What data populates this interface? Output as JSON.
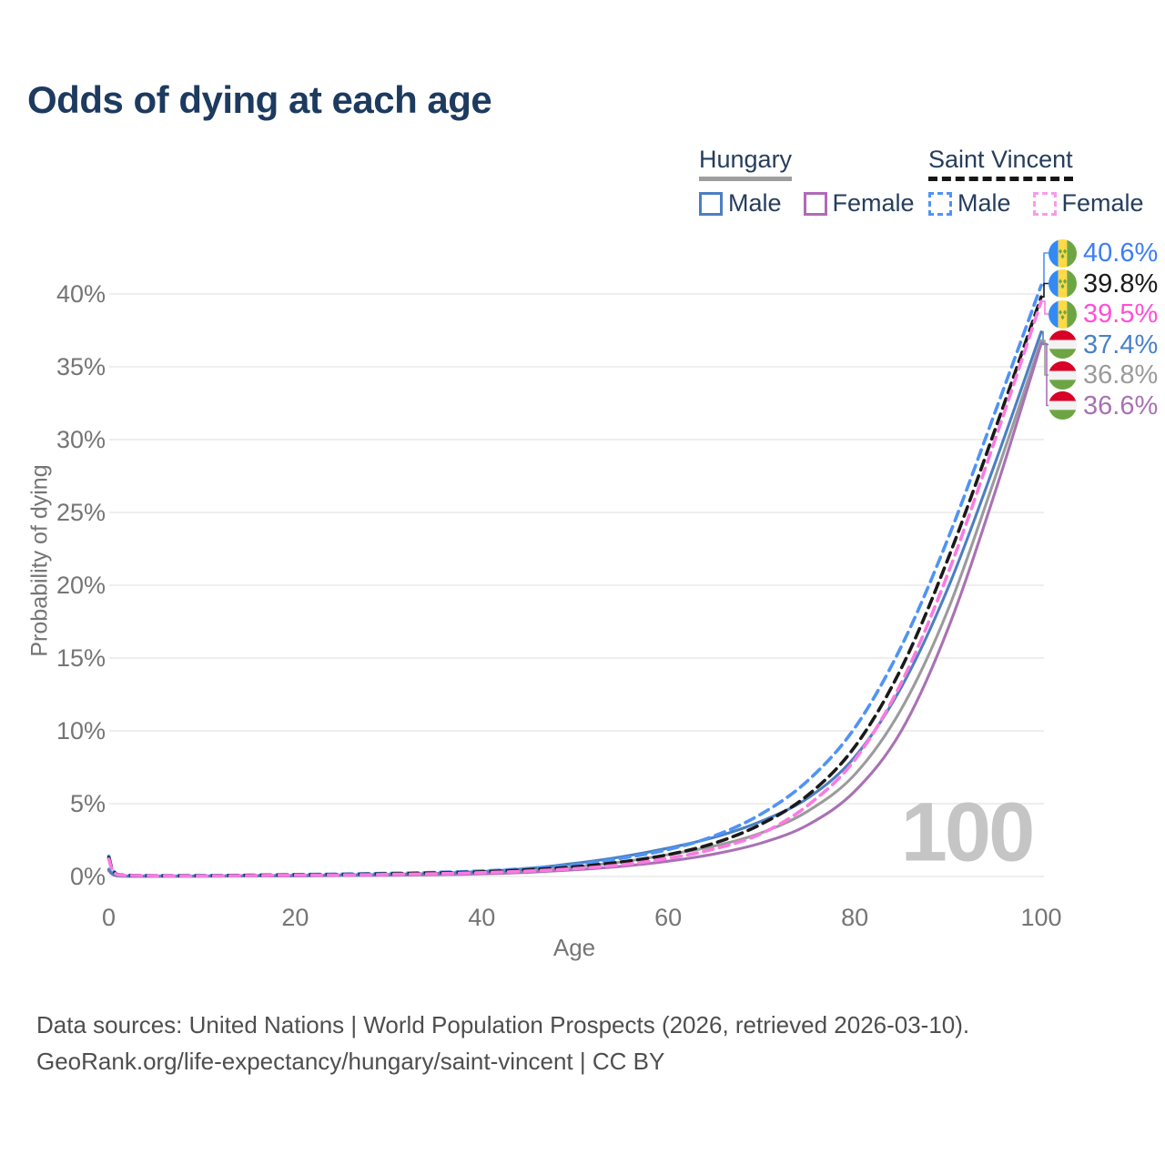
{
  "title": "Odds of dying at each age",
  "legend": {
    "groups": [
      {
        "name": "Hungary",
        "underline_style": "solid",
        "underline_color": "#9e9e9e",
        "items": [
          {
            "label": "Male",
            "color": "#4c7fc1",
            "dash": false
          },
          {
            "label": "Female",
            "color": "#b06ab8",
            "dash": false
          }
        ]
      },
      {
        "name": "Saint Vincent",
        "underline_style": "dashed",
        "underline_color": "#161616",
        "items": [
          {
            "label": "Male",
            "color": "#4f93f6",
            "dash": true
          },
          {
            "label": "Female",
            "color": "#fb9ae8",
            "dash": true
          }
        ]
      }
    ]
  },
  "y_axis": {
    "title": "Probability of dying",
    "tick_labels": [
      "0%",
      "5%",
      "10%",
      "15%",
      "20%",
      "25%",
      "30%",
      "35%",
      "40%"
    ],
    "tick_values": [
      0,
      5,
      10,
      15,
      20,
      25,
      30,
      35,
      40
    ]
  },
  "x_axis": {
    "title": "Age",
    "tick_labels": [
      "0",
      "20",
      "40",
      "60",
      "80",
      "100"
    ],
    "tick_values": [
      0,
      20,
      40,
      60,
      80,
      100
    ]
  },
  "watermark": "100",
  "end_labels": [
    {
      "flag": "saint-vincent",
      "value": "40.6%",
      "color": "#3d7ef5"
    },
    {
      "flag": "saint-vincent",
      "value": "39.8%",
      "color": "#1a1a1a"
    },
    {
      "flag": "saint-vincent",
      "value": "39.5%",
      "color": "#ff4fd8"
    },
    {
      "flag": "hungary",
      "value": "37.4%",
      "color": "#4a80c9"
    },
    {
      "flag": "hungary",
      "value": "36.8%",
      "color": "#9b9b9b"
    },
    {
      "flag": "hungary",
      "value": "36.6%",
      "color": "#a971b4"
    }
  ],
  "footer": {
    "line1": "Data sources: United Nations | World Population Prospects (2026, retrieved 2026-03-10).",
    "line2": "GeoRank.org/life-expectancy/hungary/saint-vincent | CC BY"
  },
  "flag_colors": {
    "saint_vincent": {
      "blue": "#338af3",
      "yellow": "#ffda44",
      "green": "#6da544"
    },
    "hungary": {
      "red": "#d80027",
      "white": "#f2f2f2",
      "green": "#6da544"
    }
  },
  "chart_data": {
    "type": "line",
    "title": "Odds of dying at each age",
    "xlabel": "Age",
    "ylabel": "Probability of dying",
    "x_range": [
      0,
      100
    ],
    "y_range_percent": [
      0,
      42
    ],
    "grid": true,
    "legend_position": "top-right",
    "x": [
      0,
      1,
      5,
      10,
      15,
      20,
      25,
      30,
      35,
      40,
      45,
      50,
      55,
      60,
      65,
      70,
      75,
      80,
      85,
      90,
      95,
      100
    ],
    "series": [
      {
        "name": "Saint Vincent Male",
        "style": "dashed",
        "color": "#4f93f6",
        "values": [
          1.4,
          0.12,
          0.06,
          0.06,
          0.09,
          0.13,
          0.17,
          0.22,
          0.28,
          0.38,
          0.55,
          0.8,
          1.25,
          1.85,
          2.8,
          4.3,
          6.6,
          10.2,
          15.8,
          23.2,
          31.8,
          40.6
        ]
      },
      {
        "name": "Saint Vincent Both sexes",
        "style": "dashed",
        "color": "#1a1a1a",
        "values": [
          1.3,
          0.11,
          0.05,
          0.05,
          0.08,
          0.11,
          0.14,
          0.18,
          0.24,
          0.32,
          0.46,
          0.66,
          1.0,
          1.5,
          2.3,
          3.6,
          5.6,
          8.9,
          14.3,
          21.8,
          30.6,
          39.8
        ]
      },
      {
        "name": "Saint Vincent Female",
        "style": "dashed",
        "color": "#fb7ae1",
        "values": [
          1.2,
          0.1,
          0.05,
          0.04,
          0.06,
          0.09,
          0.11,
          0.14,
          0.19,
          0.26,
          0.37,
          0.54,
          0.8,
          1.25,
          1.9,
          2.95,
          4.9,
          8.0,
          13.3,
          20.8,
          29.9,
          39.5
        ]
      },
      {
        "name": "Hungary Male",
        "style": "solid",
        "color": "#4c7fc1",
        "values": [
          0.5,
          0.04,
          0.02,
          0.03,
          0.05,
          0.07,
          0.1,
          0.14,
          0.21,
          0.34,
          0.55,
          0.9,
          1.35,
          1.95,
          2.7,
          3.8,
          5.4,
          8.2,
          13.0,
          19.8,
          28.3,
          37.4
        ]
      },
      {
        "name": "Hungary Both sexes",
        "style": "solid",
        "color": "#9b9b9b",
        "values": [
          0.45,
          0.04,
          0.02,
          0.02,
          0.04,
          0.05,
          0.08,
          0.11,
          0.16,
          0.26,
          0.42,
          0.67,
          1.0,
          1.5,
          2.1,
          3.0,
          4.5,
          7.0,
          11.5,
          18.3,
          27.3,
          36.8
        ]
      },
      {
        "name": "Hungary Female",
        "style": "solid",
        "color": "#a971b4",
        "values": [
          0.4,
          0.03,
          0.02,
          0.02,
          0.03,
          0.04,
          0.06,
          0.08,
          0.12,
          0.18,
          0.29,
          0.46,
          0.7,
          1.05,
          1.55,
          2.3,
          3.55,
          5.85,
          10.0,
          17.0,
          26.3,
          36.6
        ]
      }
    ],
    "end_values_percent": [
      40.6,
      39.8,
      39.5,
      37.4,
      36.8,
      36.6
    ]
  }
}
